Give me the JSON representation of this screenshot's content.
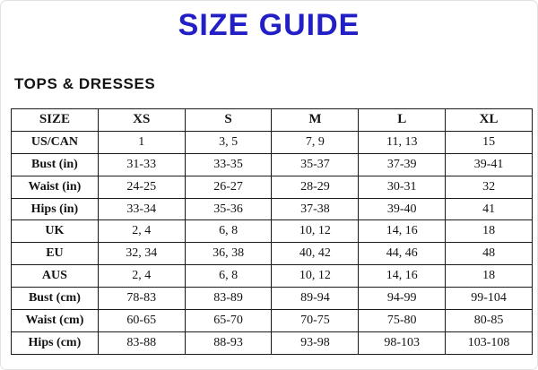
{
  "page": {
    "title": "SIZE GUIDE",
    "section_heading": "TOPS & DRESSES",
    "accent_color": "#231fc7",
    "text_color": "#141414"
  },
  "table": {
    "columns": [
      "SIZE",
      "XS",
      "S",
      "M",
      "L",
      "XL"
    ],
    "rows": [
      {
        "label": "US/CAN",
        "values": [
          "1",
          "3, 5",
          "7, 9",
          "11, 13",
          "15"
        ]
      },
      {
        "label": "Bust (in)",
        "values": [
          "31-33",
          "33-35",
          "35-37",
          "37-39",
          "39-41"
        ]
      },
      {
        "label": "Waist (in)",
        "values": [
          "24-25",
          "26-27",
          "28-29",
          "30-31",
          "32"
        ]
      },
      {
        "label": "Hips (in)",
        "values": [
          "33-34",
          "35-36",
          "37-38",
          "39-40",
          "41"
        ]
      },
      {
        "label": "UK",
        "values": [
          "2, 4",
          "6, 8",
          "10, 12",
          "14, 16",
          "18"
        ]
      },
      {
        "label": "EU",
        "values": [
          "32, 34",
          "36, 38",
          "40, 42",
          "44, 46",
          "48"
        ]
      },
      {
        "label": "AUS",
        "values": [
          "2, 4",
          "6, 8",
          "10, 12",
          "14, 16",
          "18"
        ]
      },
      {
        "label": "Bust (cm)",
        "values": [
          "78-83",
          "83-89",
          "89-94",
          "94-99",
          "99-104"
        ]
      },
      {
        "label": "Waist (cm)",
        "values": [
          "60-65",
          "65-70",
          "70-75",
          "75-80",
          "80-85"
        ]
      },
      {
        "label": "Hips (cm)",
        "values": [
          "83-88",
          "88-93",
          "93-98",
          "98-103",
          "103-108"
        ]
      }
    ]
  }
}
